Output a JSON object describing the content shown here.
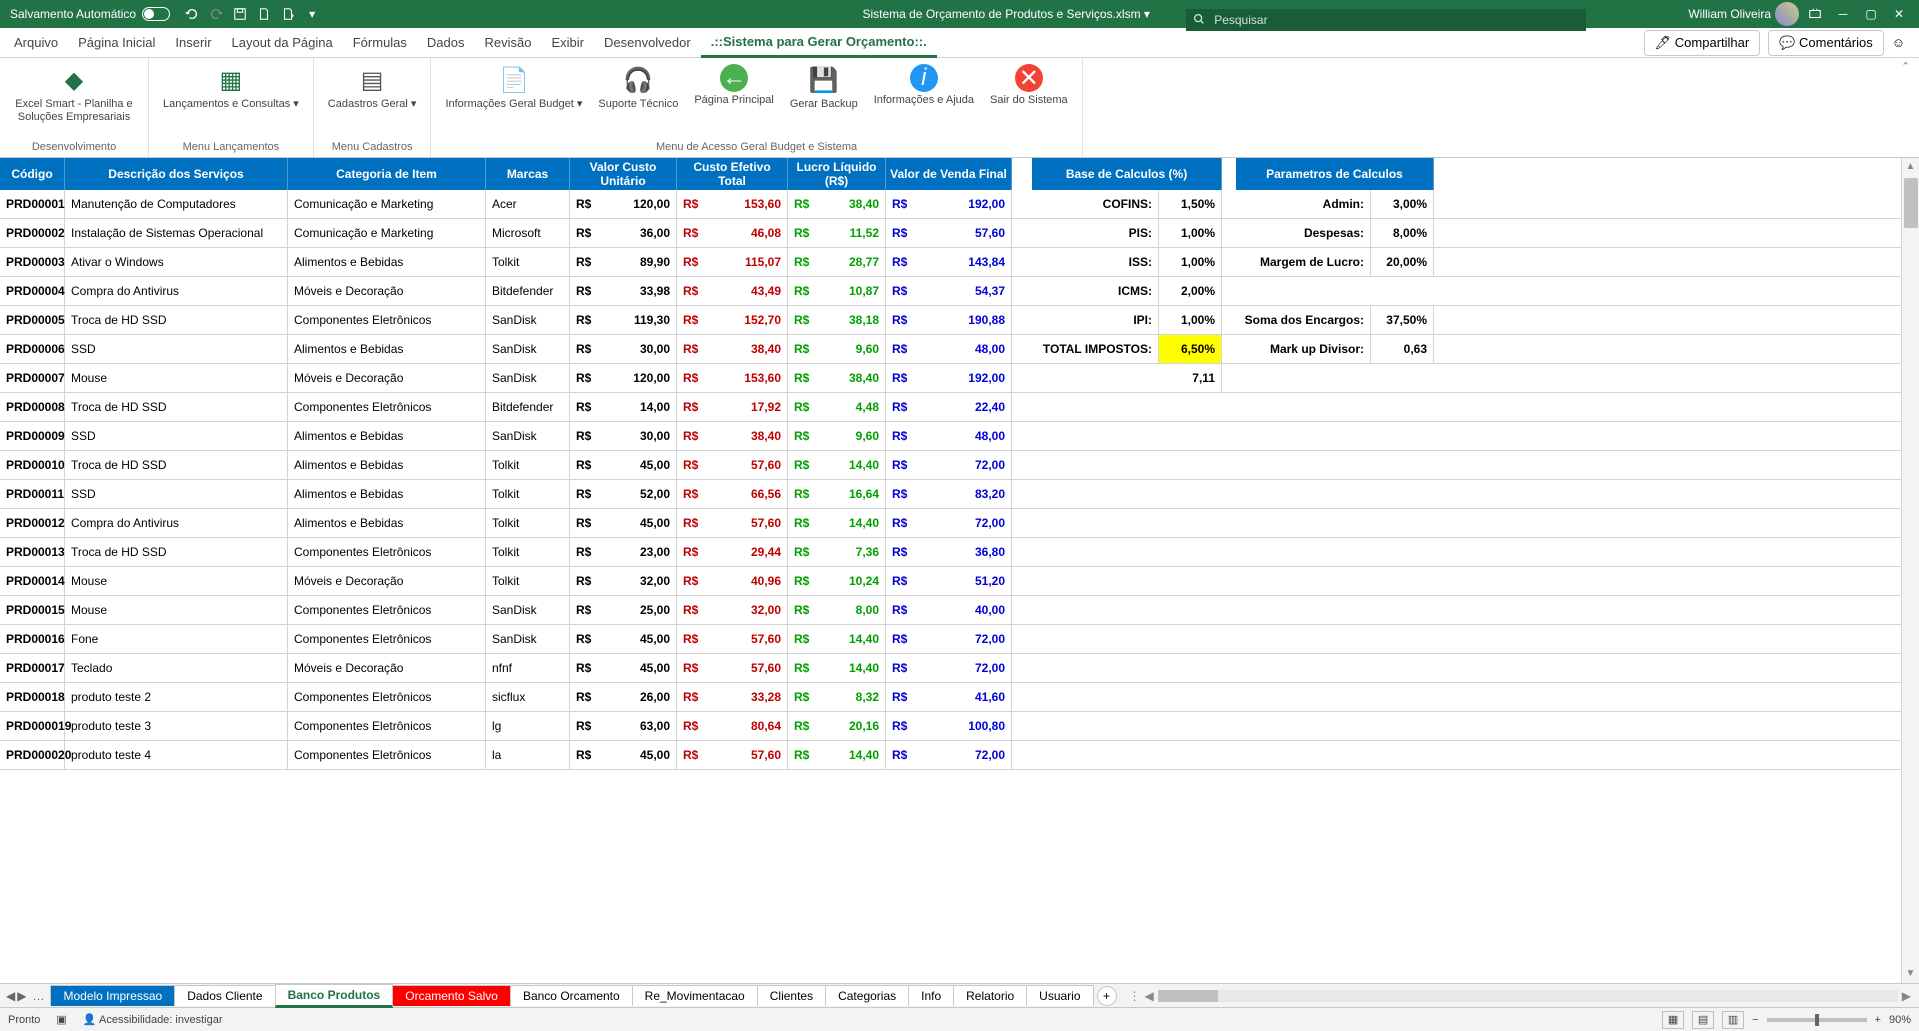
{
  "titlebar": {
    "autosave": "Salvamento Automático",
    "filename": "Sistema de Orçamento de Produtos e Serviços.xlsm",
    "search_placeholder": "Pesquisar",
    "user": "William Oliveira"
  },
  "tabs": {
    "arquivo": "Arquivo",
    "pagina_inicial": "Página Inicial",
    "inserir": "Inserir",
    "layout": "Layout da Página",
    "formulas": "Fórmulas",
    "dados": "Dados",
    "revisao": "Revisão",
    "exibir": "Exibir",
    "desenvolvedor": "Desenvolvedor",
    "custom": ".::Sistema para Gerar Orçamento::.",
    "compartilhar": "Compartilhar",
    "comentarios": "Comentários"
  },
  "ribbon": {
    "group1_label": "Desenvolvimento",
    "btn1": "Excel Smart - Planilha e Soluções Empresariais",
    "group2_label": "Menu Lançamentos",
    "btn2": "Lançamentos e Consultas",
    "group3_label": "Menu Cadastros",
    "btn3": "Cadastros Geral",
    "group4_label": "Menu de Acesso Geral Budget e Sistema",
    "btn4": "Informações Geral Budget",
    "btn5": "Suporte Técnico",
    "btn6": "Página Principal",
    "btn7": "Gerar Backup",
    "btn8": "Informações e Ajuda",
    "btn9": "Sair do Sistema"
  },
  "headers": {
    "codigo": "Código",
    "desc": "Descrição dos Serviços",
    "cat": "Categoria de Item",
    "marcas": "Marcas",
    "unit": "Valor Custo Unitário",
    "efetivo": "Custo Efetivo Total",
    "liquido": "Lucro Líquido (R$)",
    "venda": "Valor de Venda Final",
    "base": "Base de Calculos (%)",
    "param": "Parametros de Calculos"
  },
  "colors": {
    "header_bg": "#0070c0",
    "red": "#c00000",
    "green": "#00a000",
    "blue": "#0000d8",
    "yellow": "#ffff00",
    "excel_green": "#217346"
  },
  "rows": [
    {
      "codigo": "PRD00001",
      "desc": "Manutenção de Computadores",
      "cat": "Comunicação e Marketing",
      "marca": "Acer",
      "unit": "120,00",
      "efetivo": "153,60",
      "liquido": "38,40",
      "venda": "192,00"
    },
    {
      "codigo": "PRD00002",
      "desc": "Instalação de Sistemas Operacional",
      "cat": "Comunicação e Marketing",
      "marca": "Microsoft",
      "unit": "36,00",
      "efetivo": "46,08",
      "liquido": "11,52",
      "venda": "57,60"
    },
    {
      "codigo": "PRD00003",
      "desc": "Ativar o Windows",
      "cat": "Alimentos e Bebidas",
      "marca": "Tolkit",
      "unit": "89,90",
      "efetivo": "115,07",
      "liquido": "28,77",
      "venda": "143,84"
    },
    {
      "codigo": "PRD00004",
      "desc": "Compra do Antivirus",
      "cat": "Móveis e Decoração",
      "marca": "Bitdefender",
      "unit": "33,98",
      "efetivo": "43,49",
      "liquido": "10,87",
      "venda": "54,37"
    },
    {
      "codigo": "PRD00005",
      "desc": "Troca de HD SSD",
      "cat": "Componentes Eletrônicos",
      "marca": "SanDisk",
      "unit": "119,30",
      "efetivo": "152,70",
      "liquido": "38,18",
      "venda": "190,88"
    },
    {
      "codigo": "PRD00006",
      "desc": "SSD",
      "cat": "Alimentos e Bebidas",
      "marca": "SanDisk",
      "unit": "30,00",
      "efetivo": "38,40",
      "liquido": "9,60",
      "venda": "48,00"
    },
    {
      "codigo": "PRD00007",
      "desc": "Mouse",
      "cat": "Móveis e Decoração",
      "marca": "SanDisk",
      "unit": "120,00",
      "efetivo": "153,60",
      "liquido": "38,40",
      "venda": "192,00"
    },
    {
      "codigo": "PRD00008",
      "desc": "Troca de HD SSD",
      "cat": "Componentes Eletrônicos",
      "marca": "Bitdefender",
      "unit": "14,00",
      "efetivo": "17,92",
      "liquido": "4,48",
      "venda": "22,40"
    },
    {
      "codigo": "PRD00009",
      "desc": "SSD",
      "cat": "Alimentos e Bebidas",
      "marca": "SanDisk",
      "unit": "30,00",
      "efetivo": "38,40",
      "liquido": "9,60",
      "venda": "48,00"
    },
    {
      "codigo": "PRD00010",
      "desc": "Troca de HD SSD",
      "cat": "Alimentos e Bebidas",
      "marca": "Tolkit",
      "unit": "45,00",
      "efetivo": "57,60",
      "liquido": "14,40",
      "venda": "72,00"
    },
    {
      "codigo": "PRD00011",
      "desc": "SSD",
      "cat": "Alimentos e Bebidas",
      "marca": "Tolkit",
      "unit": "52,00",
      "efetivo": "66,56",
      "liquido": "16,64",
      "venda": "83,20"
    },
    {
      "codigo": "PRD00012",
      "desc": "Compra do Antivirus",
      "cat": "Alimentos e Bebidas",
      "marca": "Tolkit",
      "unit": "45,00",
      "efetivo": "57,60",
      "liquido": "14,40",
      "venda": "72,00"
    },
    {
      "codigo": "PRD00013",
      "desc": "Troca de HD SSD",
      "cat": "Componentes Eletrônicos",
      "marca": "Tolkit",
      "unit": "23,00",
      "efetivo": "29,44",
      "liquido": "7,36",
      "venda": "36,80"
    },
    {
      "codigo": "PRD00014",
      "desc": "Mouse",
      "cat": "Móveis e Decoração",
      "marca": "Tolkit",
      "unit": "32,00",
      "efetivo": "40,96",
      "liquido": "10,24",
      "venda": "51,20"
    },
    {
      "codigo": "PRD00015",
      "desc": "Mouse",
      "cat": "Componentes Eletrônicos",
      "marca": "SanDisk",
      "unit": "25,00",
      "efetivo": "32,00",
      "liquido": "8,00",
      "venda": "40,00"
    },
    {
      "codigo": "PRD00016",
      "desc": "Fone",
      "cat": "Componentes Eletrônicos",
      "marca": "SanDisk",
      "unit": "45,00",
      "efetivo": "57,60",
      "liquido": "14,40",
      "venda": "72,00"
    },
    {
      "codigo": "PRD00017",
      "desc": "Teclado",
      "cat": "Móveis e Decoração",
      "marca": "nfnf",
      "unit": "45,00",
      "efetivo": "57,60",
      "liquido": "14,40",
      "venda": "72,00"
    },
    {
      "codigo": "PRD00018",
      "desc": "produto teste 2",
      "cat": "Componentes Eletrônicos",
      "marca": "sicflux",
      "unit": "26,00",
      "efetivo": "33,28",
      "liquido": "8,32",
      "venda": "41,60"
    },
    {
      "codigo": "PRD000019",
      "desc": "produto teste 3",
      "cat": "Componentes Eletrônicos",
      "marca": "lg",
      "unit": "63,00",
      "efetivo": "80,64",
      "liquido": "20,16",
      "venda": "100,80"
    },
    {
      "codigo": "PRD000020",
      "desc": "produto teste 4",
      "cat": "Componentes Eletrônicos",
      "marca": "la",
      "unit": "45,00",
      "efetivo": "57,60",
      "liquido": "14,40",
      "venda": "72,00"
    }
  ],
  "base_calc": [
    {
      "label": "COFINS:",
      "val": "1,50%"
    },
    {
      "label": "PIS:",
      "val": "1,00%"
    },
    {
      "label": "ISS:",
      "val": "1,00%"
    },
    {
      "label": "ICMS:",
      "val": "2,00%"
    },
    {
      "label": "IPI:",
      "val": "1,00%"
    },
    {
      "label": "TOTAL IMPOSTOS:",
      "val": "6,50%",
      "yellow": true
    }
  ],
  "extra_val": "7,11",
  "param_calc": [
    {
      "label": "Admin:",
      "val": "3,00%"
    },
    {
      "label": "Despesas:",
      "val": "8,00%"
    },
    {
      "label": "Margem de Lucro:",
      "val": "20,00%"
    },
    {
      "label": "",
      "val": ""
    },
    {
      "label": "Soma dos Encargos:",
      "val": "37,50%"
    },
    {
      "label": "Mark up Divisor:",
      "val": "0,63"
    }
  ],
  "sheet_tabs": {
    "modelo": "Modelo Impressao",
    "dados": "Dados Cliente",
    "banco_prod": "Banco Produtos",
    "orc_salvo": "Orcamento Salvo",
    "banco_orc": "Banco Orcamento",
    "re_mov": "Re_Movimentacao",
    "clientes": "Clientes",
    "categorias": "Categorias",
    "info": "Info",
    "relatorio": "Relatorio",
    "usuario": "Usuario"
  },
  "status": {
    "pronto": "Pronto",
    "acess": "Acessibilidade: investigar",
    "zoom": "90%"
  }
}
